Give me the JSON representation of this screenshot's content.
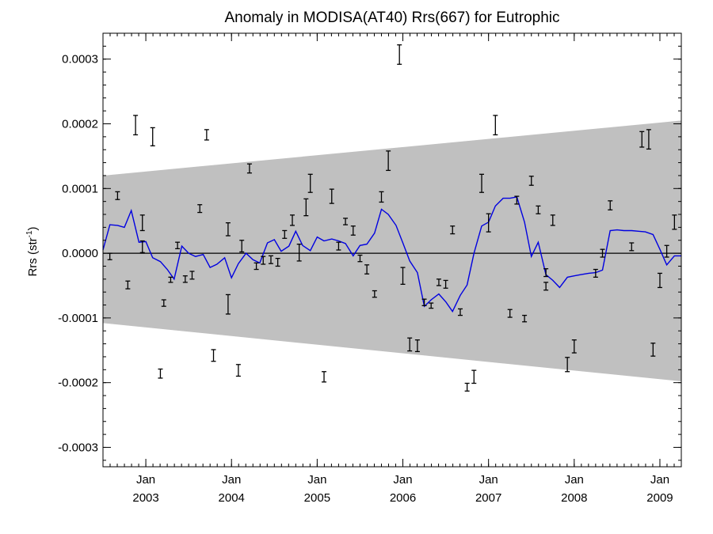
{
  "chart_data": {
    "type": "line",
    "title": "Anomaly in MODISA(AT40) Rrs(667) for Eutrophic",
    "ylabel_main": "Rrs (str",
    "ylabel_sup": "-1",
    "ylabel_close": ")",
    "xlim": [
      2002.5,
      2009.25
    ],
    "ylim": [
      -0.00033,
      0.00034
    ],
    "y_ticks": [
      {
        "value": 0.0003,
        "label": "0.0003"
      },
      {
        "value": 0.0002,
        "label": "0.0002"
      },
      {
        "value": 0.0001,
        "label": "0.0001"
      },
      {
        "value": 0.0,
        "label": "0.0000"
      },
      {
        "value": -0.0001,
        "label": "-0.0001"
      },
      {
        "value": -0.0002,
        "label": "-0.0002"
      },
      {
        "value": -0.0003,
        "label": "-0.0003"
      }
    ],
    "x_ticks": [
      {
        "value": 2003.0,
        "month": "Jan",
        "year": "2003"
      },
      {
        "value": 2004.0,
        "month": "Jan",
        "year": "2004"
      },
      {
        "value": 2005.0,
        "month": "Jan",
        "year": "2005"
      },
      {
        "value": 2006.0,
        "month": "Jan",
        "year": "2006"
      },
      {
        "value": 2007.0,
        "month": "Jan",
        "year": "2007"
      },
      {
        "value": 2008.0,
        "month": "Jan",
        "year": "2008"
      },
      {
        "value": 2009.0,
        "month": "Jan",
        "year": "2009"
      }
    ],
    "confidence_band": {
      "x": [
        2002.5,
        2009.25
      ],
      "upper": [
        0.00012,
        0.000205
      ],
      "lower": [
        -0.000108,
        -0.000198
      ],
      "color": "#c0c0c0"
    },
    "zero_line": 0.0,
    "series": [
      {
        "type": "line",
        "color": "#0000e0",
        "x": [
          2002.5,
          2002.58,
          2002.67,
          2002.75,
          2002.83,
          2002.92,
          2003.0,
          2003.08,
          2003.17,
          2003.25,
          2003.33,
          2003.42,
          2003.5,
          2003.58,
          2003.67,
          2003.75,
          2003.83,
          2003.92,
          2004.0,
          2004.08,
          2004.17,
          2004.25,
          2004.33,
          2004.42,
          2004.5,
          2004.58,
          2004.67,
          2004.75,
          2004.83,
          2004.92,
          2005.0,
          2005.08,
          2005.17,
          2005.25,
          2005.33,
          2005.42,
          2005.5,
          2005.58,
          2005.67,
          2005.75,
          2005.83,
          2005.92,
          2006.0,
          2006.08,
          2006.17,
          2006.25,
          2006.33,
          2006.42,
          2006.5,
          2006.58,
          2006.67,
          2006.75,
          2006.83,
          2006.92,
          2007.0,
          2007.08,
          2007.17,
          2007.25,
          2007.33,
          2007.42,
          2007.5,
          2007.58,
          2007.67,
          2007.75,
          2007.83,
          2007.92,
          2008.0,
          2008.08,
          2008.17,
          2008.25,
          2008.33,
          2008.42,
          2008.5,
          2008.58,
          2008.67,
          2008.75,
          2008.83,
          2008.92,
          2009.0,
          2009.08,
          2009.17,
          2009.25
        ],
        "y": [
          5e-06,
          4.4e-05,
          4.3e-05,
          4e-05,
          6.6e-05,
          1.7e-05,
          1.8e-05,
          -7e-06,
          -1.3e-05,
          -2.5e-05,
          -4e-05,
          1.1e-05,
          0.0,
          -5e-06,
          -2e-06,
          -2.2e-05,
          -1.7e-05,
          -7e-06,
          -3.8e-05,
          -1.6e-05,
          0.0,
          -1e-05,
          -1.5e-05,
          1.6e-05,
          2.1e-05,
          3e-06,
          1.1e-05,
          3.4e-05,
          1.2e-05,
          4e-06,
          2.5e-05,
          1.9e-05,
          2.2e-05,
          1.9e-05,
          1.5e-05,
          -4e-06,
          1.2e-05,
          1.4e-05,
          3.1e-05,
          6.8e-05,
          6e-05,
          4.3e-05,
          1.6e-05,
          -1.2e-05,
          -3e-05,
          -8.2e-05,
          -7.2e-05,
          -6.3e-05,
          -7.5e-05,
          -9e-05,
          -6.5e-05,
          -4.9e-05,
          0.0,
          4.2e-05,
          4.8e-05,
          7.3e-05,
          8.5e-05,
          8.5e-05,
          8.7e-05,
          4.8e-05,
          -5e-06,
          1.7e-05,
          -3.3e-05,
          -4.2e-05,
          -5.3e-05,
          -3.7e-05,
          -3.5e-05,
          -3.3e-05,
          -3.1e-05,
          -3e-05,
          -2.6e-05,
          3.5e-05,
          3.6e-05,
          3.5e-05,
          3.5e-05,
          3.4e-05,
          3.3e-05,
          2.9e-05,
          6e-06,
          -1.8e-05,
          -4e-06,
          -4e-06
        ]
      }
    ],
    "error_points": [
      {
        "x": 2002.58,
        "y": -5e-06,
        "err": 5e-06
      },
      {
        "x": 2002.67,
        "y": 8.9e-05,
        "err": 6e-06
      },
      {
        "x": 2002.79,
        "y": -4.9e-05,
        "err": 6e-06
      },
      {
        "x": 2002.88,
        "y": 0.000198,
        "err": 1.5e-05
      },
      {
        "x": 2002.96,
        "y": 4.7e-05,
        "err": 1.2e-05
      },
      {
        "x": 2002.96,
        "y": 1e-05,
        "err": 9e-06
      },
      {
        "x": 2003.08,
        "y": 0.00018,
        "err": 1.4e-05
      },
      {
        "x": 2003.17,
        "y": -0.000186,
        "err": 7e-06
      },
      {
        "x": 2003.21,
        "y": -7.7e-05,
        "err": 5e-06
      },
      {
        "x": 2003.29,
        "y": -4.1e-05,
        "err": 4e-06
      },
      {
        "x": 2003.37,
        "y": 1.2e-05,
        "err": 5e-06
      },
      {
        "x": 2003.46,
        "y": -4e-05,
        "err": 5e-06
      },
      {
        "x": 2003.54,
        "y": -3.4e-05,
        "err": 6e-06
      },
      {
        "x": 2003.63,
        "y": 6.9e-05,
        "err": 6e-06
      },
      {
        "x": 2003.71,
        "y": 0.000183,
        "err": 8e-06
      },
      {
        "x": 2003.79,
        "y": -0.000158,
        "err": 9e-06
      },
      {
        "x": 2003.96,
        "y": -7.9e-05,
        "err": 1.5e-05
      },
      {
        "x": 2003.96,
        "y": 3.7e-05,
        "err": 1e-05
      },
      {
        "x": 2004.08,
        "y": -0.000181,
        "err": 9e-06
      },
      {
        "x": 2004.12,
        "y": 1.1e-05,
        "err": 9e-06
      },
      {
        "x": 2004.21,
        "y": 0.000131,
        "err": 7e-06
      },
      {
        "x": 2004.29,
        "y": -2e-05,
        "err": 5e-06
      },
      {
        "x": 2004.37,
        "y": -1.1e-05,
        "err": 6e-06
      },
      {
        "x": 2004.46,
        "y": -1e-05,
        "err": 6e-06
      },
      {
        "x": 2004.54,
        "y": -1.4e-05,
        "err": 6e-06
      },
      {
        "x": 2004.62,
        "y": 2.9e-05,
        "err": 6e-06
      },
      {
        "x": 2004.71,
        "y": 5.1e-05,
        "err": 8e-06
      },
      {
        "x": 2004.79,
        "y": 1e-06,
        "err": 1.3e-05
      },
      {
        "x": 2004.87,
        "y": 7.1e-05,
        "err": 1.3e-05
      },
      {
        "x": 2004.92,
        "y": 0.000108,
        "err": 1.4e-05
      },
      {
        "x": 2005.08,
        "y": -0.000191,
        "err": 8e-06
      },
      {
        "x": 2005.17,
        "y": 8.8e-05,
        "err": 1.1e-05
      },
      {
        "x": 2005.25,
        "y": 1.1e-05,
        "err": 6e-06
      },
      {
        "x": 2005.33,
        "y": 4.9e-05,
        "err": 5e-06
      },
      {
        "x": 2005.42,
        "y": 3.5e-05,
        "err": 7e-06
      },
      {
        "x": 2005.5,
        "y": -8e-06,
        "err": 5e-06
      },
      {
        "x": 2005.58,
        "y": -2.5e-05,
        "err": 7e-06
      },
      {
        "x": 2005.67,
        "y": -6.3e-05,
        "err": 5e-06
      },
      {
        "x": 2005.75,
        "y": 8.7e-05,
        "err": 8e-06
      },
      {
        "x": 2005.83,
        "y": 0.000143,
        "err": 1.5e-05
      },
      {
        "x": 2005.96,
        "y": 0.000307,
        "err": 1.5e-05
      },
      {
        "x": 2006.0,
        "y": -3.5e-05,
        "err": 1.3e-05
      },
      {
        "x": 2006.08,
        "y": -0.000141,
        "err": 1e-05
      },
      {
        "x": 2006.17,
        "y": -0.000143,
        "err": 9e-06
      },
      {
        "x": 2006.25,
        "y": -7.6e-05,
        "err": 5e-06
      },
      {
        "x": 2006.33,
        "y": -8.1e-05,
        "err": 4e-06
      },
      {
        "x": 2006.42,
        "y": -4.5e-05,
        "err": 5e-06
      },
      {
        "x": 2006.5,
        "y": -4.8e-05,
        "err": 6e-06
      },
      {
        "x": 2006.58,
        "y": 3.6e-05,
        "err": 6e-06
      },
      {
        "x": 2006.67,
        "y": -9.1e-05,
        "err": 5e-06
      },
      {
        "x": 2006.75,
        "y": -0.000207,
        "err": 6e-06
      },
      {
        "x": 2006.83,
        "y": -0.000191,
        "err": 1e-05
      },
      {
        "x": 2006.92,
        "y": 0.000108,
        "err": 1.4e-05
      },
      {
        "x": 2007.0,
        "y": 4.7e-05,
        "err": 1.4e-05
      },
      {
        "x": 2007.08,
        "y": 0.000198,
        "err": 1.5e-05
      },
      {
        "x": 2007.25,
        "y": -9.3e-05,
        "err": 6e-06
      },
      {
        "x": 2007.33,
        "y": 8.2e-05,
        "err": 6e-06
      },
      {
        "x": 2007.42,
        "y": -0.000101,
        "err": 5e-06
      },
      {
        "x": 2007.5,
        "y": 0.000112,
        "err": 7e-06
      },
      {
        "x": 2007.58,
        "y": 6.7e-05,
        "err": 6e-06
      },
      {
        "x": 2007.67,
        "y": -5.1e-05,
        "err": 6e-06
      },
      {
        "x": 2007.67,
        "y": -3e-05,
        "err": 6e-06
      },
      {
        "x": 2007.75,
        "y": 5.1e-05,
        "err": 8e-06
      },
      {
        "x": 2007.92,
        "y": -0.000172,
        "err": 1.1e-05
      },
      {
        "x": 2008.0,
        "y": -0.000144,
        "err": 1e-05
      },
      {
        "x": 2008.25,
        "y": -3.1e-05,
        "err": 6e-06
      },
      {
        "x": 2008.33,
        "y": 0.0,
        "err": 6e-06
      },
      {
        "x": 2008.42,
        "y": 7.4e-05,
        "err": 7e-06
      },
      {
        "x": 2008.67,
        "y": 1e-05,
        "err": 6e-06
      },
      {
        "x": 2008.79,
        "y": 0.000176,
        "err": 1.2e-05
      },
      {
        "x": 2008.87,
        "y": 0.000176,
        "err": 1.5e-05
      },
      {
        "x": 2008.92,
        "y": -0.000149,
        "err": 1e-05
      },
      {
        "x": 2009.0,
        "y": -4.2e-05,
        "err": 1.1e-05
      },
      {
        "x": 2009.08,
        "y": 3e-06,
        "err": 9e-06
      },
      {
        "x": 2009.17,
        "y": 4.8e-05,
        "err": 1.1e-05
      }
    ],
    "grid": false,
    "legend": "none"
  }
}
